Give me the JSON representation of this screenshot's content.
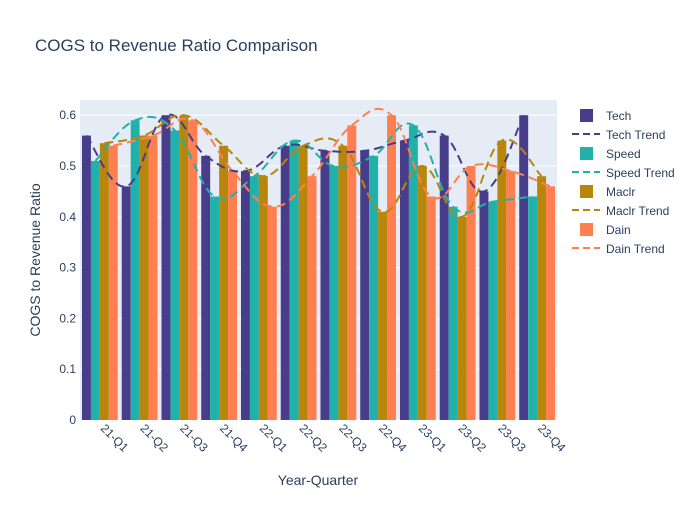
{
  "chart_data": {
    "type": "bar",
    "title": "COGS to Revenue Ratio Comparison",
    "xlabel": "Year-Quarter",
    "ylabel": "COGS to Revenue Ratio",
    "categories": [
      "21-Q1",
      "21-Q2",
      "21-Q3",
      "21-Q4",
      "22-Q1",
      "22-Q2",
      "22-Q3",
      "22-Q4",
      "23-Q1",
      "23-Q2",
      "23-Q3",
      "23-Q4"
    ],
    "ylim": [
      0,
      0.63
    ],
    "yticks": [
      0,
      0.1,
      0.2,
      0.3,
      0.4,
      0.5,
      0.6
    ],
    "ytick_labels": [
      "0",
      "0.1",
      "0.2",
      "0.3",
      "0.4",
      "0.5",
      "0.6"
    ],
    "grid": true,
    "legend_position": "right",
    "series": [
      {
        "name": "Tech",
        "color": "#483d8b",
        "trend_name": "Tech Trend",
        "values": [
          0.56,
          0.46,
          0.6,
          0.52,
          0.49,
          0.54,
          0.53,
          0.53,
          0.55,
          0.56,
          0.45,
          0.6
        ]
      },
      {
        "name": "Speed",
        "color": "#20b2aa",
        "trend_name": "Speed Trend",
        "values": [
          0.51,
          0.59,
          0.57,
          0.44,
          0.48,
          0.55,
          0.5,
          0.52,
          0.58,
          0.42,
          0.43,
          0.44
        ]
      },
      {
        "name": "Maclr",
        "color": "#b8860b",
        "trend_name": "Maclr Trend",
        "values": [
          0.545,
          0.56,
          0.6,
          0.54,
          0.48,
          0.54,
          0.54,
          0.41,
          0.5,
          0.4,
          0.55,
          0.48
        ]
      },
      {
        "name": "Dain",
        "color": "#ff7f50",
        "trend_name": "Dain Trend",
        "values": [
          0.54,
          0.56,
          0.59,
          0.49,
          0.42,
          0.48,
          0.58,
          0.6,
          0.44,
          0.5,
          0.49,
          0.46
        ]
      }
    ]
  }
}
